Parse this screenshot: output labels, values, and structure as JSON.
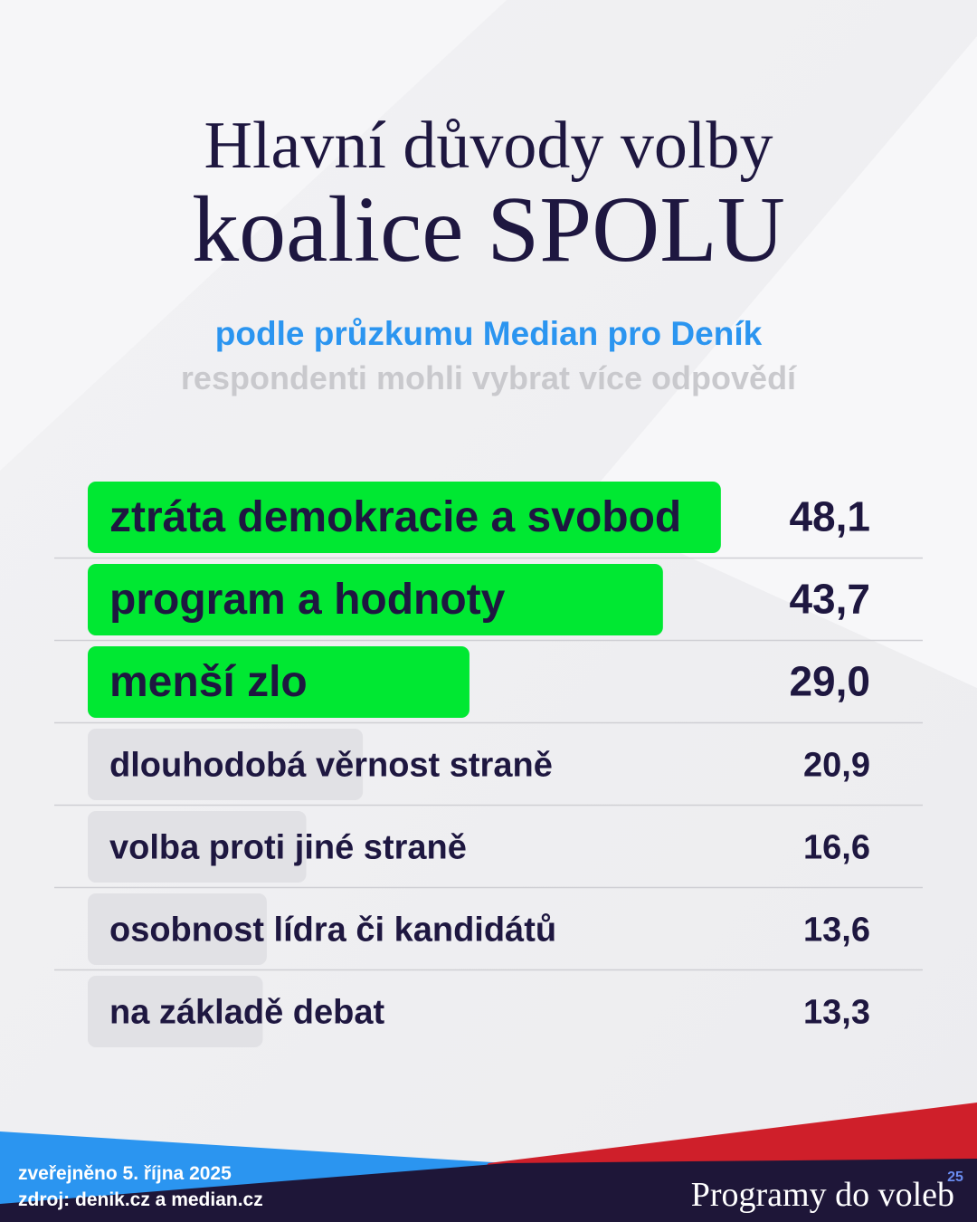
{
  "chart_data": {
    "type": "hbar",
    "title": [
      "Hlavní důvody volby",
      "koalice SPOLU"
    ],
    "subtitle": "podle průzkumu Median pro Deník",
    "note": "respondenti mohli vybrat více odpovědí",
    "categories": [
      "ztráta demokracie a svobod",
      "program a hodnoty",
      "menší zlo",
      "dlouhodobá věrnost straně",
      "volba proti jiné straně",
      "osobnost lídra či kandidátů",
      "na základě debat"
    ],
    "values": [
      48.1,
      43.7,
      29.0,
      20.9,
      16.6,
      13.6,
      13.3
    ],
    "value_labels": [
      "48,1",
      "43,7",
      "29,0",
      "20,9",
      "16,6",
      "13,6",
      "13,3"
    ],
    "colors": [
      "#00e832",
      "#00e832",
      "#00e832",
      "#e1e1e5",
      "#e1e1e5",
      "#e1e1e5",
      "#e1e1e5"
    ],
    "xlim": [
      0,
      50
    ]
  },
  "footer": {
    "published": "zveřejněno 5. října 2025",
    "source": "zdroj: denik.cz a median.cz",
    "brand": "Programy do voleb",
    "brand_mark": "25"
  }
}
